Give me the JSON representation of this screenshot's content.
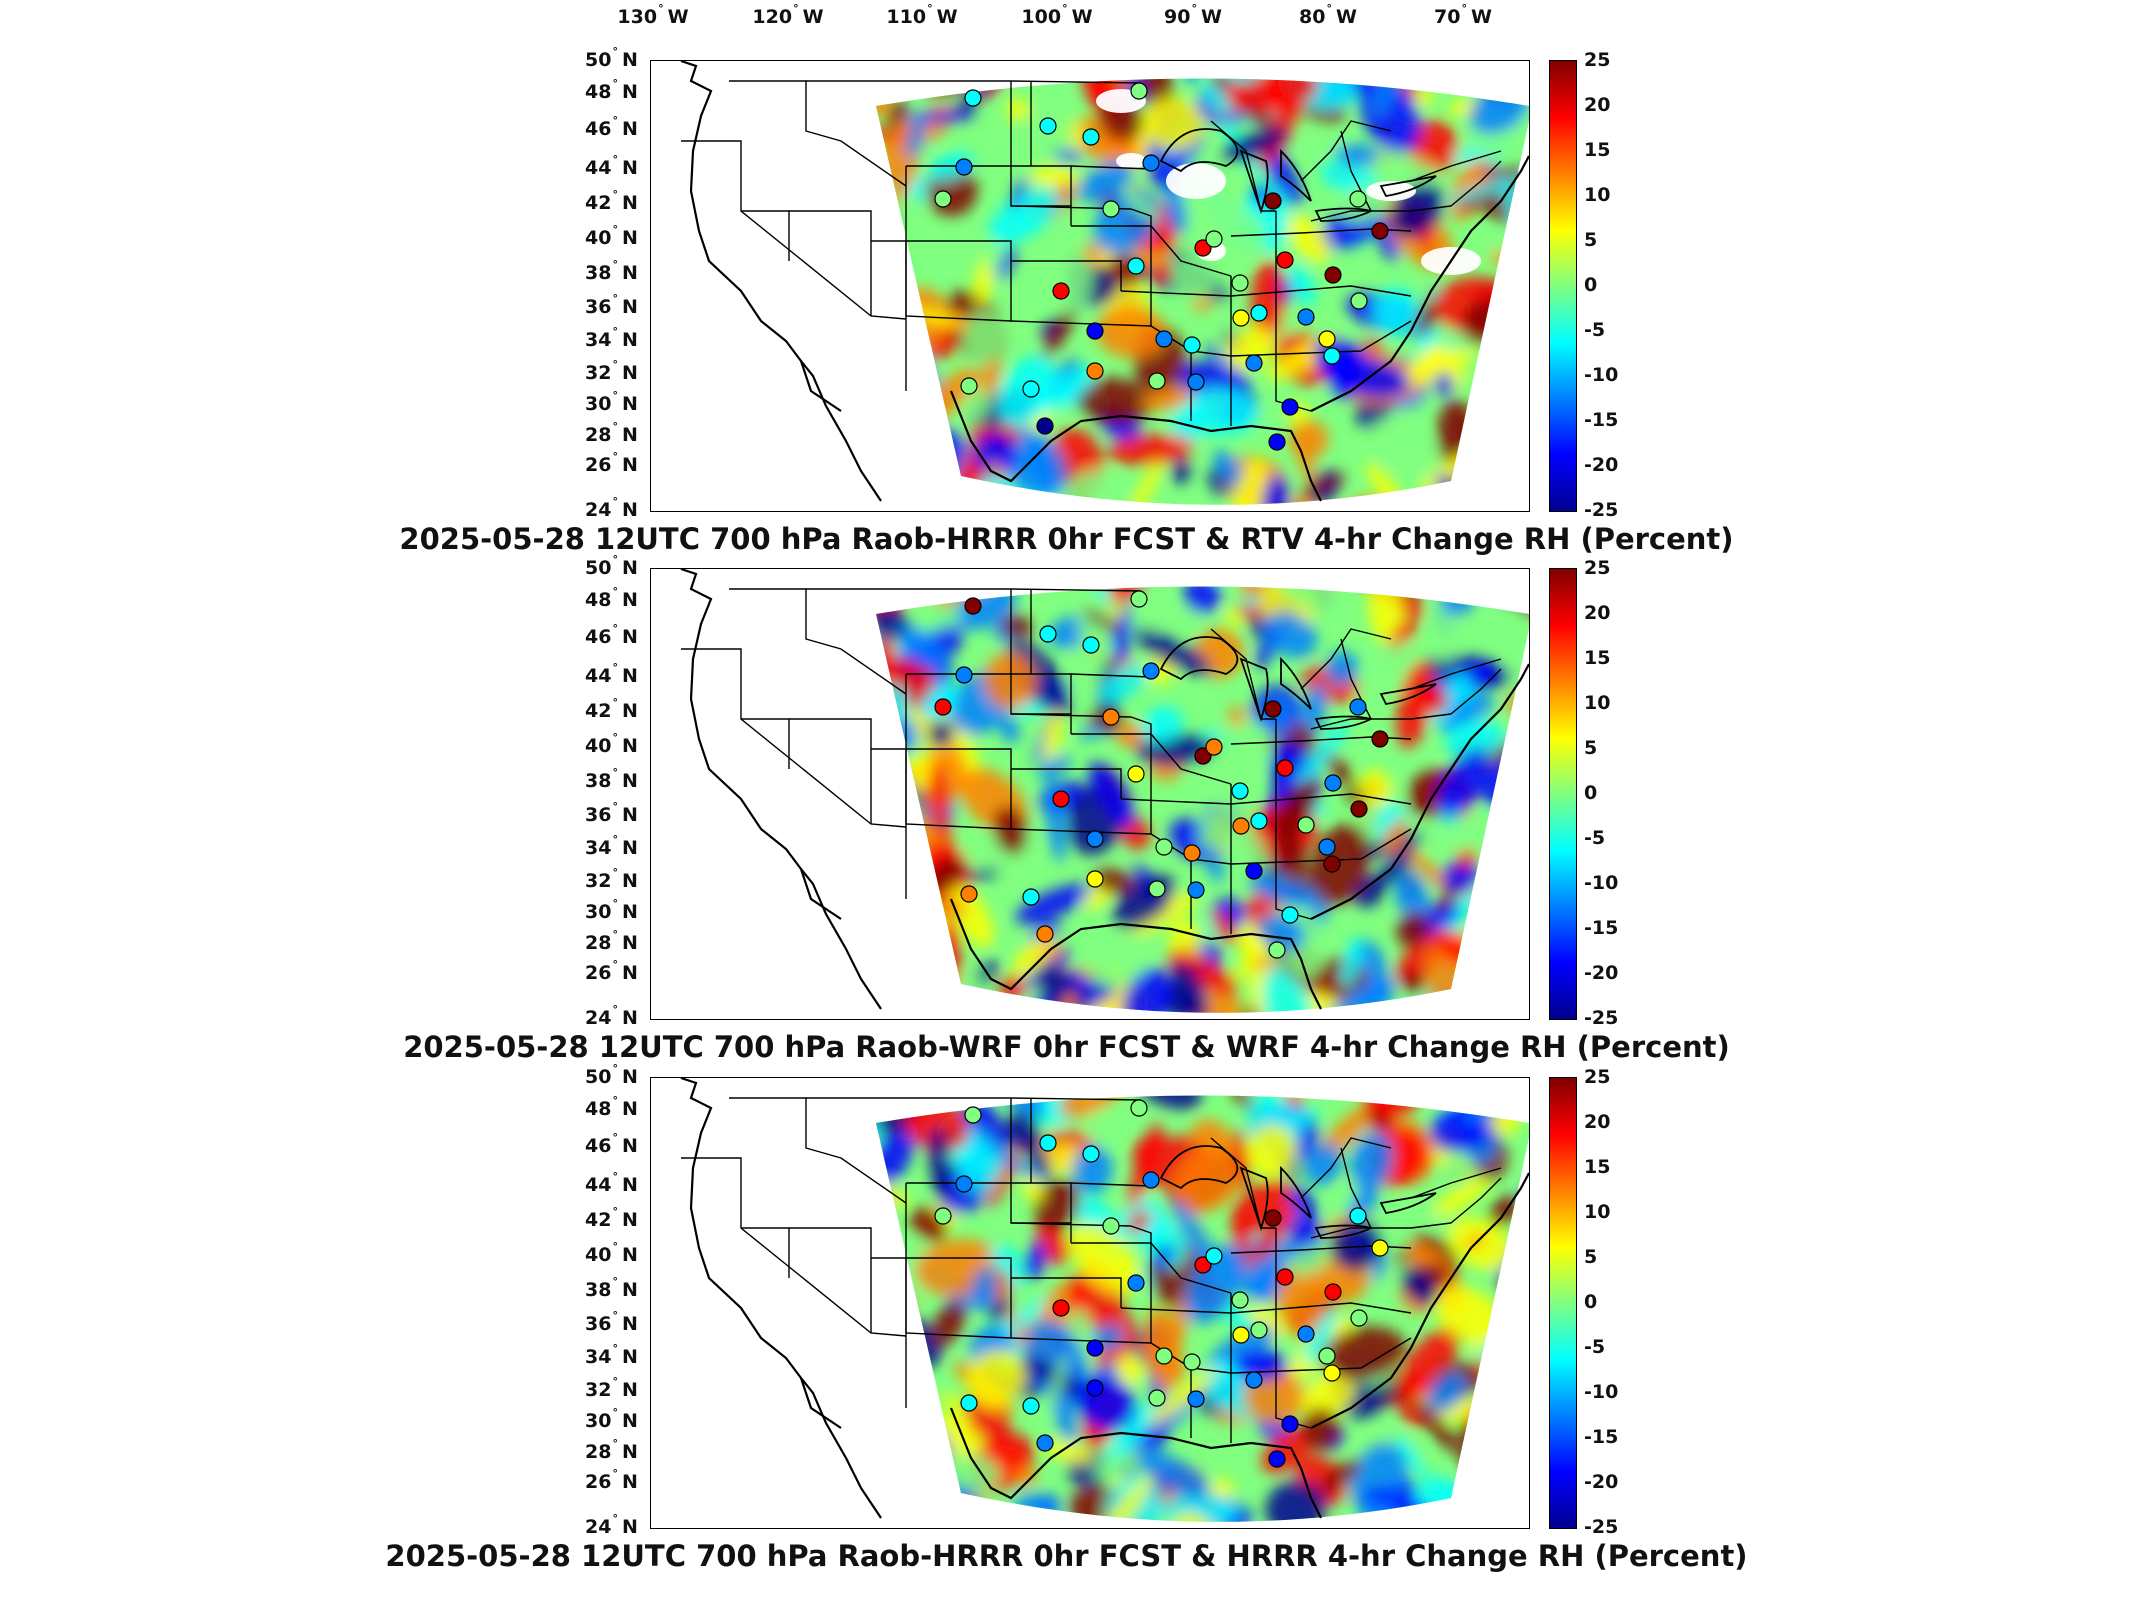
{
  "lon_labels": [
    "130",
    "120",
    "110",
    "100",
    "90",
    "80",
    "70"
  ],
  "lon_suffix": "W",
  "lat_labels": [
    "50",
    "48",
    "46",
    "44",
    "42",
    "40",
    "38",
    "36",
    "34",
    "32",
    "30",
    "28",
    "26",
    "24"
  ],
  "lat_suffix": "N",
  "colorbar_ticks": [
    "25",
    "20",
    "15",
    "10",
    "5",
    "0",
    "-5",
    "-10",
    "-15",
    "-20",
    "-25"
  ],
  "colorbar_range": [
    -25,
    25
  ],
  "colorbar_colors": [
    "#00008f",
    "#0000ff",
    "#0080ff",
    "#00ffff",
    "#80ff80",
    "#ffff00",
    "#ff8000",
    "#ff0000",
    "#800000"
  ],
  "panels": [
    {
      "title": "2025-05-28 12UTC 700 hPa Raob-HRRR 0hr FCST & RTV 4-hr Change RH (Percent)",
      "stations": [
        -5,
        -5,
        0,
        -15,
        -10,
        0,
        -5,
        25,
        25,
        0,
        20,
        20,
        0,
        -5,
        20,
        0,
        -5,
        -20,
        -10,
        0,
        0,
        5,
        -15,
        -10,
        -25,
        0,
        15,
        -5,
        -5,
        -20,
        5,
        0,
        -5,
        25,
        -20,
        -10
      ]
    },
    {
      "title": "2025-05-28 12UTC 700 hPa Raob-WRF 0hr FCST & WRF 4-hr Change RH (Percent)",
      "stations": [
        25,
        -5,
        0,
        -10,
        -10,
        20,
        -5,
        25,
        25,
        -10,
        25,
        20,
        15,
        5,
        20,
        10,
        -5,
        -10,
        0,
        -5,
        25,
        10,
        -20,
        -10,
        15,
        0,
        5,
        25,
        -5,
        -5,
        -15,
        10,
        10,
        -10,
        0,
        0
      ]
    },
    {
      "title": "2025-05-28 12UTC 700 hPa Raob-HRRR 0hr FCST & HRRR 4-hr Change RH (Percent)",
      "stations": [
        0,
        -5,
        0,
        -15,
        -15,
        0,
        -5,
        25,
        5,
        -5,
        20,
        20,
        0,
        -10,
        20,
        -5,
        0,
        -20,
        0,
        0,
        0,
        5,
        -15,
        -10,
        -15,
        0,
        -20,
        5,
        -5,
        -20,
        0,
        -5,
        0,
        20,
        -20,
        -10
      ]
    }
  ]
}
